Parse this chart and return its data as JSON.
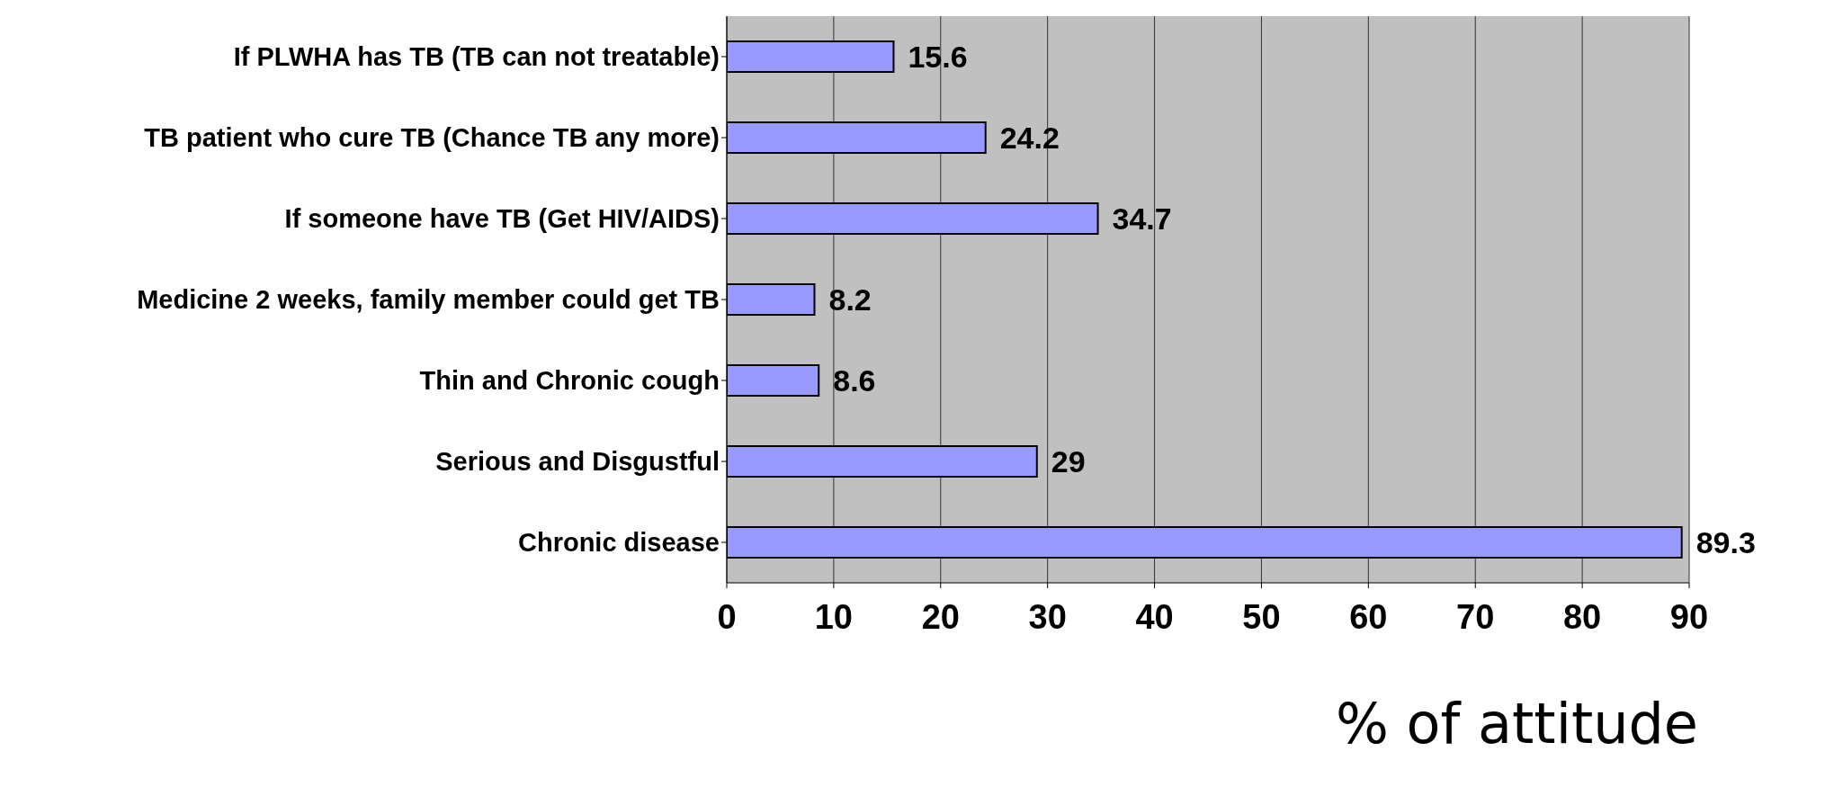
{
  "chart_data": {
    "type": "bar",
    "orientation": "horizontal",
    "xlabel": "% of attitude",
    "categories": [
      "If PLWHA has TB (TB can not treatable)",
      "TB patient who cure TB (Chance TB any more)",
      "If someone have TB (Get HIV/AIDS)",
      "Medicine 2 weeks, family member could get TB",
      "Thin and Chronic cough",
      "Serious and Disgustful",
      "Chronic disease"
    ],
    "values": [
      15.6,
      24.2,
      34.7,
      8.2,
      8.6,
      29,
      89.3
    ],
    "color": "#9999ff",
    "xlim": [
      0,
      90
    ],
    "xticks": [
      0,
      10,
      20,
      30,
      40,
      50,
      60,
      70,
      80,
      90
    ],
    "grid": "x",
    "data_labels": true
  }
}
